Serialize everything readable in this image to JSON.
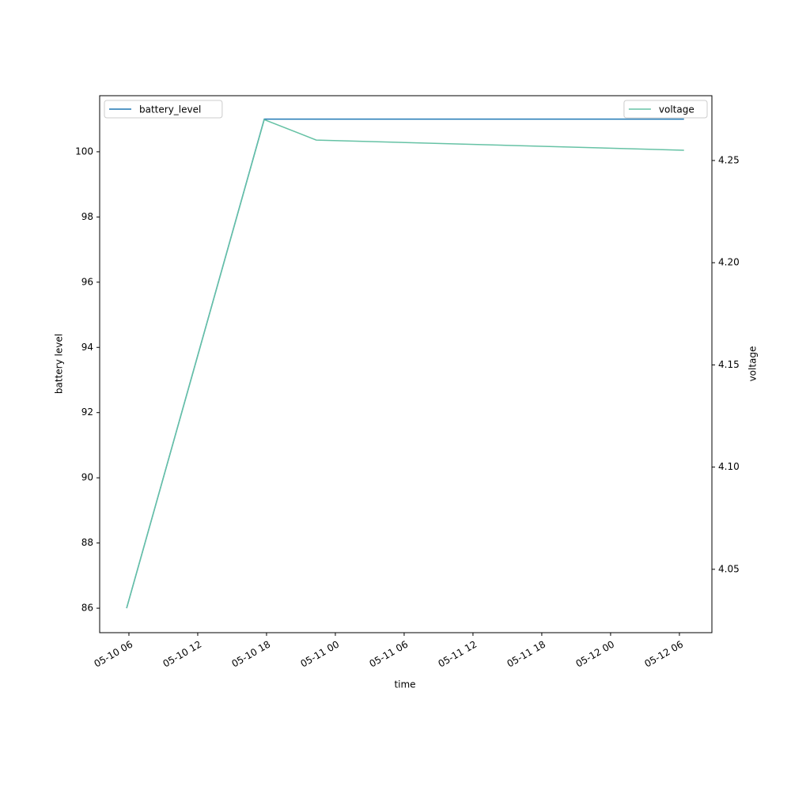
{
  "chart_data": {
    "type": "line",
    "x_label": "time",
    "y_label": "battery level",
    "y2_label": "voltage",
    "x": [
      "05-10 05:48",
      "05-10 17:48",
      "05-10 22:20",
      "05-12 06:24"
    ],
    "xlim": [
      "05-10 03:27",
      "05-12 08:50"
    ],
    "xticks": [
      {
        "value": "05-10 06:00",
        "label": "05-10 06"
      },
      {
        "value": "05-10 12:00",
        "label": "05-10 12"
      },
      {
        "value": "05-10 18:00",
        "label": "05-10 18"
      },
      {
        "value": "05-11 00:00",
        "label": "05-11 00"
      },
      {
        "value": "05-11 06:00",
        "label": "05-11 06"
      },
      {
        "value": "05-11 12:00",
        "label": "05-11 12"
      },
      {
        "value": "05-11 18:00",
        "label": "05-11 18"
      },
      {
        "value": "05-12 00:00",
        "label": "05-12 00"
      },
      {
        "value": "05-12 06:00",
        "label": "05-12 06"
      }
    ],
    "ylim": [
      85.25,
      101.72
    ],
    "yticks": [
      86,
      88,
      90,
      92,
      94,
      96,
      98,
      100
    ],
    "y2lim": [
      4.019,
      4.2817
    ],
    "y2ticks": [
      4.05,
      {
        "value": 4.1,
        "label": "4.10"
      },
      4.15,
      {
        "value": 4.2,
        "label": "4.20"
      },
      4.25
    ],
    "series": [
      {
        "name": "battery_level",
        "color": "#1f77b4",
        "axis": "y",
        "legend": "upper left",
        "values": [
          86,
          101,
          101,
          101
        ]
      },
      {
        "name": "voltage",
        "color": "#66c2a5",
        "axis": "y2",
        "legend": "upper right",
        "values": [
          4.031,
          4.27,
          4.26,
          4.255
        ]
      }
    ]
  }
}
